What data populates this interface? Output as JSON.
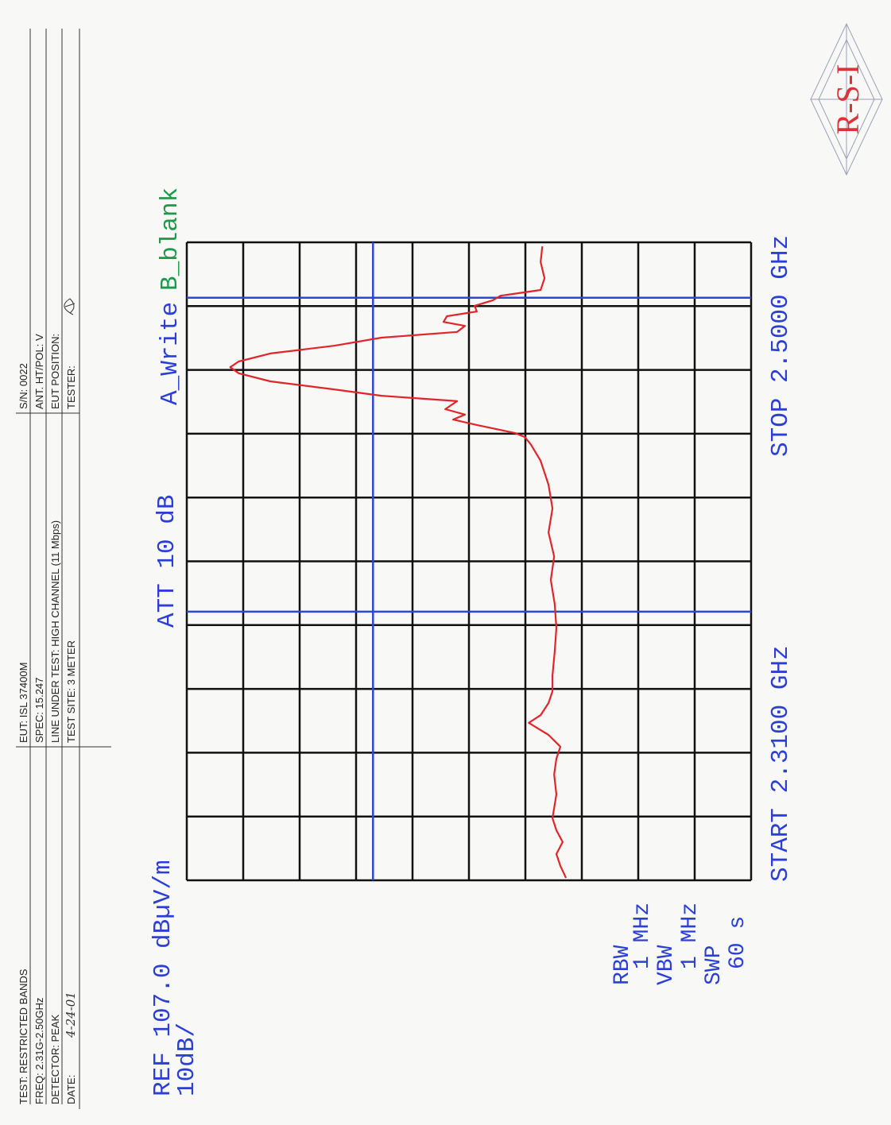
{
  "header": {
    "rows": [
      [
        "TEST:  RESTRICTED BANDS",
        "EUT:  ISL 37400M",
        "S/N:  0022"
      ],
      [
        "FREQ:  2.31G-2.50GHz",
        "SPEC:  15.247",
        "ANT. HT/POL:   V"
      ],
      [
        "DETECTOR:  PEAK",
        "LINE UNDER TEST:  HIGH CHANNEL (11 Mbps)",
        "EUT POSITION:"
      ],
      [
        "DATE:",
        "TEST SITE:  3 METER",
        "TESTER:"
      ]
    ],
    "date": "4-24-01"
  },
  "logo": "R-S-I",
  "chart_data": {
    "type": "line",
    "ref_label": "REF 107.0 dBµV/m",
    "scale_label": "10dB/",
    "att_label": "ATT 10 dB",
    "trace_b_label": "B_blank",
    "start_label": "START 2.3100 GHz",
    "stop_label": "STOP 2.5000 GHz",
    "settings": [
      "RBW",
      "1 MHz",
      "VBW",
      "1 MHz",
      "SWP",
      "60 s"
    ],
    "xlim": [
      2.31,
      2.5
    ],
    "ylim": [
      7,
      107
    ],
    "hlines": [
      74
    ],
    "vlines": [
      2.39,
      2.4835
    ],
    "limit_color": "#2a48d2",
    "x": [
      2.3107,
      2.3143,
      2.3178,
      2.3214,
      2.3249,
      2.3285,
      2.3356,
      2.3415,
      2.3462,
      2.3498,
      2.3533,
      2.3569,
      2.3592,
      2.3628,
      2.3663,
      2.371,
      2.3781,
      2.3852,
      2.3923,
      2.3994,
      2.4065,
      2.4136,
      2.4207,
      2.4278,
      2.4349,
      2.4397,
      2.442,
      2.4432,
      2.4456,
      2.4472,
      2.4487,
      2.4503,
      2.4527,
      2.4543,
      2.4562,
      2.4586,
      2.461,
      2.4628,
      2.4645,
      2.4669,
      2.4692,
      2.4716,
      2.4733,
      2.4751,
      2.4763,
      2.478,
      2.4794,
      2.4811,
      2.4827,
      2.4841,
      2.4858,
      2.4893,
      2.4941,
      2.4988
    ],
    "series": [
      {
        "name": "A_Write",
        "color": "#e0262a",
        "values": [
          39.8,
          40.8,
          41.5,
          40.4,
          41.5,
          42.2,
          41.5,
          41.9,
          41.5,
          40.8,
          42.9,
          46.4,
          44.3,
          42.9,
          42.2,
          42.2,
          41.8,
          41.5,
          41.8,
          42.5,
          41.9,
          42.9,
          42.2,
          42.9,
          44.3,
          46.0,
          47.1,
          48.8,
          55.6,
          59.8,
          57.7,
          61.2,
          59.1,
          72.5,
          80.9,
          92.2,
          97.8,
          99.3,
          97.8,
          92.2,
          80.9,
          72.5,
          59.1,
          57.7,
          61.5,
          60.9,
          55.6,
          56.0,
          52.8,
          51.4,
          44.3,
          43.6,
          44.3,
          44.0
        ]
      }
    ]
  }
}
